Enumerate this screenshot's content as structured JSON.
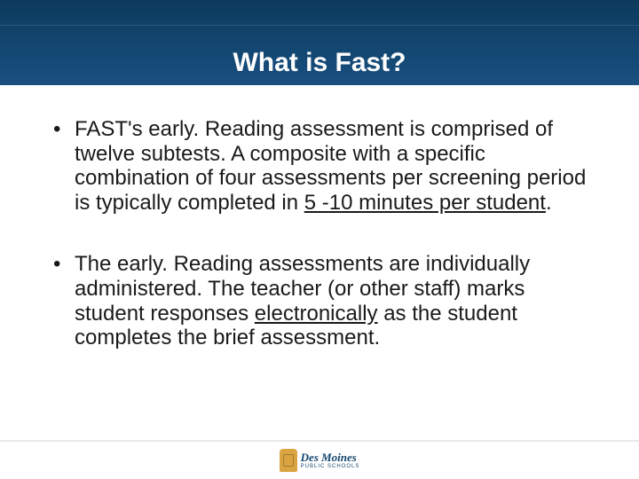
{
  "header": {
    "title": "What is Fast?",
    "background_gradient": [
      "#0d3a5c",
      "#12456f",
      "#1a5080"
    ],
    "title_color": "#ffffff",
    "title_fontsize": 30
  },
  "content": {
    "bullets": [
      {
        "pre": "FAST's early. Reading assessment is comprised of twelve subtests.  A composite with a specific combination of four assessments per screening period is typically completed in ",
        "u": "5 -10 minutes per student",
        "post": "."
      },
      {
        "pre": "The early. Reading assessments are individually administered.  The teacher (or other staff) marks student responses ",
        "u": "electronically",
        "post": " as the student completes the brief assessment."
      }
    ],
    "text_color": "#1a1a1a",
    "fontsize": 24
  },
  "footer": {
    "logo_line1": "Des Moines",
    "logo_line2": "PUBLIC SCHOOLS",
    "logo_mark_color": "#d9a441",
    "logo_text_color": "#15476f"
  }
}
